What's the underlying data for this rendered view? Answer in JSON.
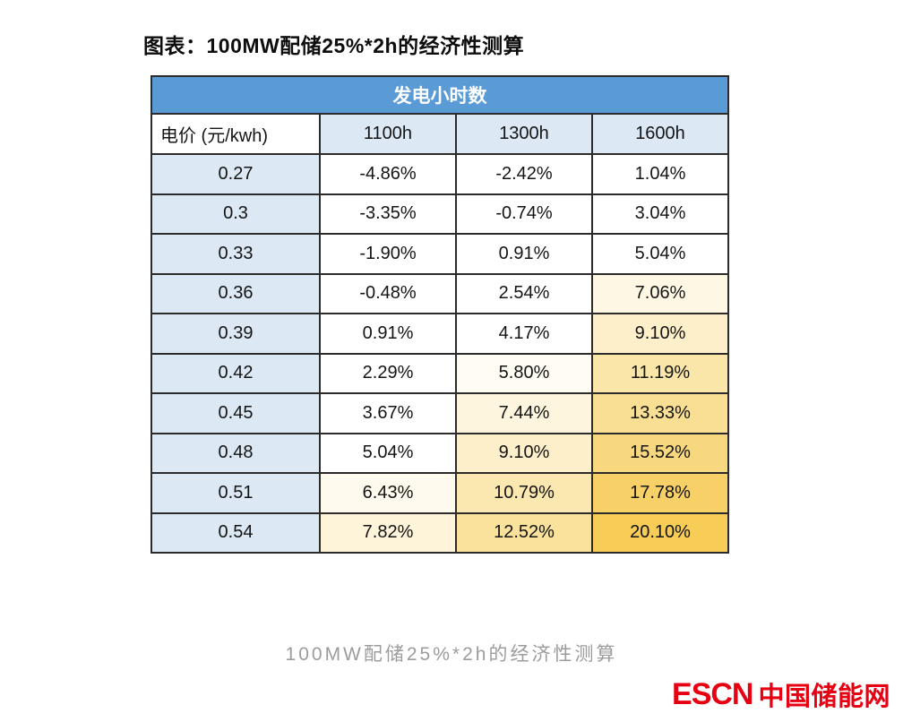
{
  "title": "图表：100MW配储25%*2h的经济性测算",
  "caption": "100MW配储25%*2h的经济性测算",
  "logo": {
    "en": "ESCN",
    "cn": "中国储能网"
  },
  "colors": {
    "header_blue": "#5B9BD5",
    "light_blue": "#DCE9F5",
    "border": "#2b2b2b",
    "caption_gray": "#9c9c9c",
    "logo_red": "#E60012",
    "heat_max_gold": "#F7CC57"
  },
  "table": {
    "group_header": "发电小时数",
    "col_headers": [
      "电价 (元/kwh)",
      "1100h",
      "1300h",
      "1600h"
    ],
    "rows": [
      {
        "price": "0.27",
        "values": [
          "-4.86%",
          "-2.42%",
          "1.04%"
        ],
        "bg": [
          "#FFFFFF",
          "#FFFFFF",
          "#FFFFFF"
        ]
      },
      {
        "price": "0.3",
        "values": [
          "-3.35%",
          "-0.74%",
          "3.04%"
        ],
        "bg": [
          "#FFFFFF",
          "#FFFFFF",
          "#FFFFFF"
        ]
      },
      {
        "price": "0.33",
        "values": [
          "-1.90%",
          "0.91%",
          "5.04%"
        ],
        "bg": [
          "#FFFFFF",
          "#FFFFFF",
          "#FFFFFF"
        ]
      },
      {
        "price": "0.36",
        "values": [
          "-0.48%",
          "2.54%",
          "7.06%"
        ],
        "bg": [
          "#FFFFFF",
          "#FFFFFF",
          "#FEF7E4"
        ]
      },
      {
        "price": "0.39",
        "values": [
          "0.91%",
          "4.17%",
          "9.10%"
        ],
        "bg": [
          "#FFFFFF",
          "#FFFFFF",
          "#FCEFC9"
        ]
      },
      {
        "price": "0.42",
        "values": [
          "2.29%",
          "5.80%",
          "11.19%"
        ],
        "bg": [
          "#FFFFFF",
          "#FEFCF3",
          "#FAE6A8"
        ]
      },
      {
        "price": "0.45",
        "values": [
          "3.67%",
          "7.44%",
          "13.33%"
        ],
        "bg": [
          "#FFFFFF",
          "#FDF5DD",
          "#F9DF93"
        ]
      },
      {
        "price": "0.48",
        "values": [
          "5.04%",
          "9.10%",
          "15.52%"
        ],
        "bg": [
          "#FFFFFF",
          "#FCEFC9",
          "#F8D87E"
        ]
      },
      {
        "price": "0.51",
        "values": [
          "6.43%",
          "10.79%",
          "17.78%"
        ],
        "bg": [
          "#FEFAEE",
          "#FBE8B0",
          "#F7D167"
        ]
      },
      {
        "price": "0.54",
        "values": [
          "7.82%",
          "12.52%",
          "20.10%"
        ],
        "bg": [
          "#FDF4D9",
          "#FAE29C",
          "#F7CC57"
        ]
      }
    ]
  },
  "chart_data": {
    "type": "table",
    "title": "图表：100MW配储25%*2h的经济性测算",
    "caption": "100MW配储25%*2h的经济性测算",
    "group_header": "发电小时数",
    "columns": [
      "电价 (元/kwh)",
      "1100h",
      "1300h",
      "1600h"
    ],
    "row_variable": "电价 (元/kwh)",
    "column_variable": "发电小时数 (h)",
    "value_unit": "%",
    "rows": [
      {
        "price": 0.27,
        "values": [
          -4.86,
          -2.42,
          1.04
        ]
      },
      {
        "price": 0.3,
        "values": [
          -3.35,
          -0.74,
          3.04
        ]
      },
      {
        "price": 0.33,
        "values": [
          -1.9,
          0.91,
          5.04
        ]
      },
      {
        "price": 0.36,
        "values": [
          -0.48,
          2.54,
          7.06
        ]
      },
      {
        "price": 0.39,
        "values": [
          0.91,
          4.17,
          9.1
        ]
      },
      {
        "price": 0.42,
        "values": [
          2.29,
          5.8,
          11.19
        ]
      },
      {
        "price": 0.45,
        "values": [
          3.67,
          7.44,
          13.33
        ]
      },
      {
        "price": 0.48,
        "values": [
          5.04,
          9.1,
          15.52
        ]
      },
      {
        "price": 0.51,
        "values": [
          6.43,
          10.79,
          17.78
        ]
      },
      {
        "price": 0.54,
        "values": [
          7.82,
          12.52,
          20.1
        ]
      }
    ],
    "heatmap": {
      "style": "white-to-gold",
      "min_colored_value": 5.5,
      "max_value": 20.1
    }
  }
}
